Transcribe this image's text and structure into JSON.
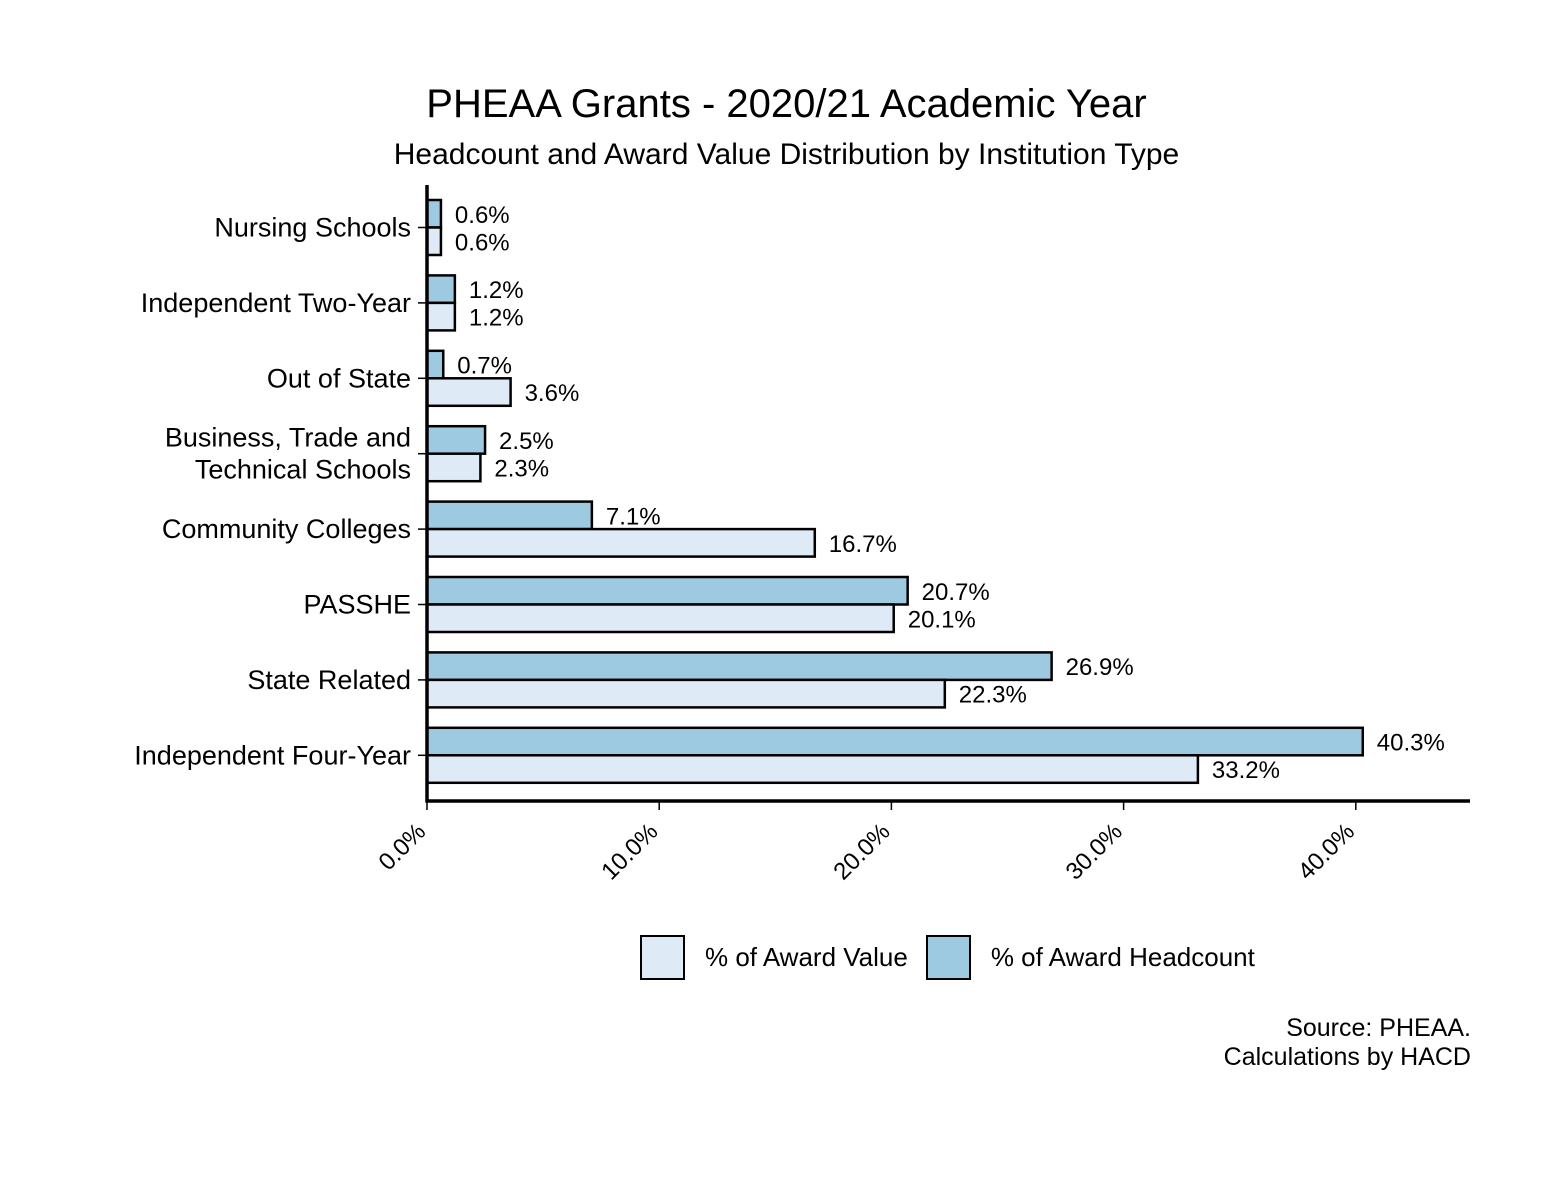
{
  "title": "PHEAA Grants - 2020/21 Academic Year",
  "subtitle": "Headcount and Award Value Distribution by Institution Type",
  "colors": {
    "headcount": "#9ecae1",
    "value": "#deebf7",
    "outline": "#000000"
  },
  "legend": [
    {
      "label": "% of Award Value",
      "color": "#deebf7"
    },
    {
      "label": "% of Award Headcount",
      "color": "#9ecae1"
    }
  ],
  "source": {
    "line1": "Source: PHEAA.",
    "line2": "Calculations by HACD"
  },
  "chart_data": {
    "type": "bar",
    "orientation": "horizontal",
    "categories": [
      [
        "Nursing Schools"
      ],
      [
        "Independent Two-Year"
      ],
      [
        "Out of State"
      ],
      [
        "Business, Trade and",
        "Technical Schools"
      ],
      [
        "Community Colleges"
      ],
      [
        "PASSHE"
      ],
      [
        "State Related"
      ],
      [
        "Independent Four-Year"
      ]
    ],
    "series": [
      {
        "name": "% of Award Headcount",
        "values": [
          0.6,
          1.2,
          0.7,
          2.5,
          7.1,
          20.7,
          26.9,
          40.3
        ],
        "labels": [
          "0.6%",
          "1.2%",
          "0.7%",
          "2.5%",
          "7.1%",
          "20.7%",
          "26.9%",
          "40.3%"
        ]
      },
      {
        "name": "% of Award Value",
        "values": [
          0.6,
          1.2,
          3.6,
          2.3,
          16.7,
          20.1,
          22.3,
          33.2
        ],
        "labels": [
          "0.6%",
          "1.2%",
          "3.6%",
          "2.3%",
          "16.7%",
          "20.1%",
          "22.3%",
          "33.2%"
        ]
      }
    ],
    "xticks": [
      0,
      10,
      20,
      30,
      40
    ],
    "xtick_labels": [
      "0.0%",
      "10.0%",
      "20.0%",
      "30.0%",
      "40.0%"
    ],
    "xlim": [
      0,
      45
    ],
    "xlabel": "",
    "ylabel": "",
    "grid": false,
    "legend_position": "bottom"
  }
}
